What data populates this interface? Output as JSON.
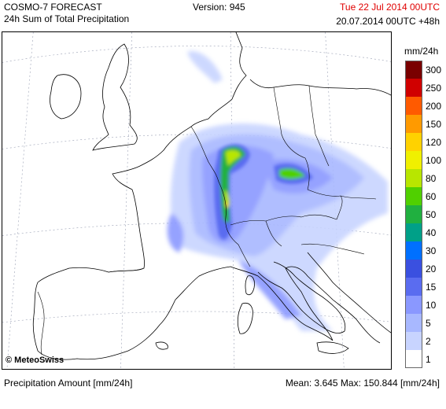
{
  "header": {
    "title": "COSMO-7 FORECAST",
    "subtitle": "24h Sum of Total Precipitation",
    "version": "Version: 945",
    "valid_date": "Tue 22 Jul 2014 00UTC",
    "run_info": "20.07.2014 00UTC +48h",
    "valid_date_color": "#e00000"
  },
  "legend": {
    "unit": "mm/24h",
    "items": [
      {
        "label": "300",
        "color": "#7a0000"
      },
      {
        "label": "250",
        "color": "#d00000"
      },
      {
        "label": "200",
        "color": "#ff5a00"
      },
      {
        "label": "150",
        "color": "#ff9a00"
      },
      {
        "label": "120",
        "color": "#ffd200"
      },
      {
        "label": "100",
        "color": "#f0f000"
      },
      {
        "label": "80",
        "color": "#b8e600"
      },
      {
        "label": "60",
        "color": "#50d000"
      },
      {
        "label": "50",
        "color": "#20b040"
      },
      {
        "label": "40",
        "color": "#00a088"
      },
      {
        "label": "30",
        "color": "#0070ff"
      },
      {
        "label": "20",
        "color": "#3a50e0"
      },
      {
        "label": "15",
        "color": "#5a6cf0"
      },
      {
        "label": "10",
        "color": "#8a98ff"
      },
      {
        "label": "5",
        "color": "#a8b8ff"
      },
      {
        "label": "2",
        "color": "#c8d4ff"
      },
      {
        "label": "1",
        "color": "#ffffff"
      }
    ]
  },
  "map": {
    "copyright": "© MeteoSwiss",
    "land_color": "#ffffff",
    "border_color": "#000000"
  },
  "footer": {
    "left": "Precipitation Amount [mm/24h]",
    "right": "Mean:  3.645 Max: 150.844 [mm/24h]"
  }
}
